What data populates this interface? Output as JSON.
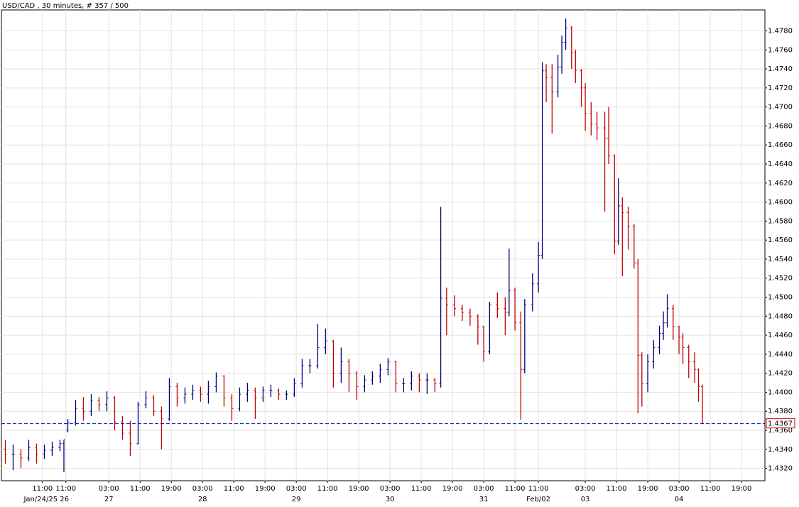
{
  "chart_data": {
    "type": "ohlc",
    "title": "USD/CAD , 30 minutes, # 357 / 500",
    "x": [
      2,
      6,
      10,
      14,
      18,
      22,
      26,
      30,
      32,
      34,
      38,
      42,
      46,
      50,
      54,
      58,
      62,
      66,
      70,
      74,
      78,
      82,
      86,
      90,
      94,
      98,
      102,
      106,
      110,
      114,
      118,
      122,
      126,
      130,
      134,
      138,
      142,
      146,
      150,
      154,
      158,
      162,
      166,
      170,
      174,
      178,
      182,
      186,
      190,
      194,
      198,
      202,
      206,
      210,
      214,
      218,
      222,
      225,
      228,
      232,
      236,
      240,
      244,
      247,
      250,
      254,
      258,
      260,
      263,
      266,
      268,
      272,
      275,
      277,
      279,
      282,
      285,
      287,
      289,
      292,
      294,
      297,
      299,
      302,
      305,
      309,
      311,
      314,
      316,
      318,
      321,
      324,
      326,
      328,
      331,
      334,
      337,
      339,
      341,
      344,
      347,
      349,
      352,
      355,
      357,
      359
    ],
    "open": [
      1.434,
      1.4335,
      1.4335,
      1.4331,
      1.4342,
      1.4335,
      1.4339,
      1.4342,
      1.4346,
      1.436,
      1.4368,
      1.4383,
      1.438,
      1.4391,
      1.4387,
      1.4394,
      1.4369,
      1.4357,
      1.4346,
      1.4387,
      1.4394,
      1.438,
      1.4372,
      1.4406,
      1.4394,
      1.4398,
      1.4402,
      1.4398,
      1.4406,
      1.4417,
      1.4394,
      1.4383,
      1.4398,
      1.4402,
      1.4394,
      1.4402,
      1.4402,
      1.4398,
      1.4398,
      1.4409,
      1.4428,
      1.4428,
      1.4447,
      1.4454,
      1.442,
      1.4432,
      1.442,
      1.4406,
      1.4413,
      1.4417,
      1.4424,
      1.4432,
      1.4409,
      1.4409,
      1.4417,
      1.4413,
      1.4413,
      1.4409,
      1.4499,
      1.4492,
      1.4488,
      1.4484,
      1.448,
      1.4469,
      1.4443,
      1.4492,
      1.4488,
      1.4484,
      1.4507,
      1.4473,
      1.4424,
      1.4492,
      1.4514,
      1.4544,
      1.4738,
      1.4731,
      1.4716,
      1.4742,
      1.4768,
      1.4783,
      1.4757,
      1.4738,
      1.472,
      1.4693,
      1.4682,
      1.4678,
      1.4667,
      1.4649,
      1.4559,
      1.4596,
      1.4589,
      1.4574,
      1.4536,
      1.4439,
      1.4409,
      1.4432,
      1.4447,
      1.4462,
      1.4473,
      1.4488,
      1.4469,
      1.4458,
      1.4447,
      1.4432,
      1.4424,
      1.4406
    ],
    "high": [
      1.435,
      1.4345,
      1.434,
      1.435,
      1.4346,
      1.4345,
      1.4348,
      1.435,
      1.435,
      1.4372,
      1.4392,
      1.4395,
      1.4398,
      1.4395,
      1.4401,
      1.4396,
      1.4375,
      1.437,
      1.439,
      1.4401,
      1.4397,
      1.4385,
      1.4415,
      1.441,
      1.4405,
      1.4408,
      1.4406,
      1.4412,
      1.4421,
      1.4418,
      1.4398,
      1.4405,
      1.441,
      1.4405,
      1.4406,
      1.4408,
      1.4404,
      1.4402,
      1.4415,
      1.4435,
      1.4435,
      1.4472,
      1.4467,
      1.4455,
      1.4447,
      1.4435,
      1.4422,
      1.4418,
      1.4422,
      1.443,
      1.4436,
      1.4433,
      1.4415,
      1.4422,
      1.442,
      1.442,
      1.4415,
      1.4595,
      1.451,
      1.4502,
      1.4492,
      1.4488,
      1.4482,
      1.447,
      1.4495,
      1.4505,
      1.45,
      1.4551,
      1.451,
      1.4485,
      1.4498,
      1.4525,
      1.4558,
      1.4747,
      1.4745,
      1.4745,
      1.4755,
      1.4775,
      1.4793,
      1.4785,
      1.476,
      1.474,
      1.4725,
      1.4705,
      1.4695,
      1.4695,
      1.47,
      1.465,
      1.4625,
      1.4605,
      1.4595,
      1.4577,
      1.454,
      1.4442,
      1.444,
      1.4455,
      1.447,
      1.4485,
      1.4503,
      1.4492,
      1.447,
      1.4462,
      1.445,
      1.4442,
      1.4425,
      1.4408
    ],
    "low": [
      1.4325,
      1.4318,
      1.432,
      1.4328,
      1.4325,
      1.433,
      1.4333,
      1.4338,
      1.4316,
      1.4358,
      1.4365,
      1.437,
      1.4375,
      1.438,
      1.438,
      1.436,
      1.435,
      1.4333,
      1.4345,
      1.4383,
      1.4375,
      1.434,
      1.437,
      1.4385,
      1.4388,
      1.4392,
      1.439,
      1.4388,
      1.44,
      1.4385,
      1.437,
      1.438,
      1.439,
      1.4372,
      1.439,
      1.4395,
      1.4392,
      1.4392,
      1.4395,
      1.4405,
      1.442,
      1.4425,
      1.444,
      1.4405,
      1.441,
      1.44,
      1.4392,
      1.44,
      1.4408,
      1.441,
      1.4418,
      1.44,
      1.44,
      1.4402,
      1.44,
      1.4398,
      1.44,
      1.4405,
      1.446,
      1.448,
      1.4475,
      1.447,
      1.445,
      1.4432,
      1.444,
      1.4478,
      1.446,
      1.448,
      1.4465,
      1.4371,
      1.442,
      1.4485,
      1.4505,
      1.454,
      1.4705,
      1.4672,
      1.471,
      1.4735,
      1.476,
      1.474,
      1.4725,
      1.47,
      1.4675,
      1.467,
      1.4665,
      1.459,
      1.464,
      1.4545,
      1.4555,
      1.4522,
      1.455,
      1.453,
      1.4378,
      1.4385,
      1.44,
      1.4425,
      1.444,
      1.4455,
      1.4468,
      1.4455,
      1.444,
      1.443,
      1.4415,
      1.441,
      1.439,
      1.4367
    ],
    "close": [
      1.4335,
      1.4335,
      1.4331,
      1.4342,
      1.4335,
      1.4339,
      1.4342,
      1.4346,
      1.435,
      1.4368,
      1.4383,
      1.438,
      1.4391,
      1.4387,
      1.4394,
      1.4369,
      1.4357,
      1.4346,
      1.4387,
      1.4394,
      1.438,
      1.4372,
      1.4406,
      1.4394,
      1.4398,
      1.4402,
      1.4398,
      1.4406,
      1.4417,
      1.4394,
      1.4383,
      1.4398,
      1.4402,
      1.4394,
      1.4402,
      1.4402,
      1.4398,
      1.4398,
      1.4409,
      1.4428,
      1.4428,
      1.4447,
      1.4454,
      1.442,
      1.4432,
      1.442,
      1.4406,
      1.4413,
      1.4417,
      1.4424,
      1.4432,
      1.4409,
      1.4409,
      1.4417,
      1.4413,
      1.4413,
      1.4409,
      1.4499,
      1.4492,
      1.4488,
      1.4484,
      1.448,
      1.4469,
      1.4443,
      1.4492,
      1.4488,
      1.4484,
      1.4507,
      1.4473,
      1.4424,
      1.4492,
      1.4514,
      1.4544,
      1.4738,
      1.4731,
      1.4716,
      1.4742,
      1.4768,
      1.4783,
      1.4757,
      1.4738,
      1.472,
      1.4693,
      1.4682,
      1.4678,
      1.4667,
      1.4649,
      1.4559,
      1.4596,
      1.4589,
      1.4574,
      1.4536,
      1.4439,
      1.4409,
      1.4432,
      1.4447,
      1.4462,
      1.4473,
      1.4488,
      1.4469,
      1.4458,
      1.4447,
      1.4432,
      1.4424,
      1.4406,
      1.4367
    ],
    "up_color": "#00007a",
    "down_color": "#c00000",
    "xlim": [
      0,
      391
    ],
    "ylim": [
      1.4307,
      1.4802
    ],
    "yticks": [
      {
        "value": 1.432,
        "label": "1.4320"
      },
      {
        "value": 1.434,
        "label": "1.4340"
      },
      {
        "value": 1.436,
        "label": "1.4360"
      },
      {
        "value": 1.438,
        "label": "1.4380"
      },
      {
        "value": 1.44,
        "label": "1.4400"
      },
      {
        "value": 1.442,
        "label": "1.4420"
      },
      {
        "value": 1.444,
        "label": "1.4440"
      },
      {
        "value": 1.446,
        "label": "1.4460"
      },
      {
        "value": 1.448,
        "label": "1.4480"
      },
      {
        "value": 1.45,
        "label": "1.4500"
      },
      {
        "value": 1.452,
        "label": "1.4520"
      },
      {
        "value": 1.454,
        "label": "1.4540"
      },
      {
        "value": 1.456,
        "label": "1.4560"
      },
      {
        "value": 1.458,
        "label": "1.4580"
      },
      {
        "value": 1.46,
        "label": "1.4600"
      },
      {
        "value": 1.462,
        "label": "1.4620"
      },
      {
        "value": 1.464,
        "label": "1.4640"
      },
      {
        "value": 1.466,
        "label": "1.4660"
      },
      {
        "value": 1.468,
        "label": "1.4680"
      },
      {
        "value": 1.47,
        "label": "1.4700"
      },
      {
        "value": 1.472,
        "label": "1.4720"
      },
      {
        "value": 1.474,
        "label": "1.4740"
      },
      {
        "value": 1.476,
        "label": "1.4760"
      },
      {
        "value": 1.478,
        "label": "1.4780"
      }
    ],
    "xticks": [
      {
        "value": 21,
        "label": "11:00"
      },
      {
        "value": 33,
        "label": "11:00"
      },
      {
        "value": 55,
        "label": "03:00"
      },
      {
        "value": 71,
        "label": "11:00"
      },
      {
        "value": 87,
        "label": "19:00"
      },
      {
        "value": 103,
        "label": "03:00"
      },
      {
        "value": 119,
        "label": "11:00"
      },
      {
        "value": 135,
        "label": "19:00"
      },
      {
        "value": 151,
        "label": "03:00"
      },
      {
        "value": 167,
        "label": "11:00"
      },
      {
        "value": 183,
        "label": "19:00"
      },
      {
        "value": 199,
        "label": "03:00"
      },
      {
        "value": 215,
        "label": "11:00"
      },
      {
        "value": 231,
        "label": "19:00"
      },
      {
        "value": 247,
        "label": "03:00"
      },
      {
        "value": 263,
        "label": "11:00"
      },
      {
        "value": 275,
        "label": "11:00"
      },
      {
        "value": 299,
        "label": "03:00"
      },
      {
        "value": 315,
        "label": "11:00"
      },
      {
        "value": 331,
        "label": "19:00"
      },
      {
        "value": 347,
        "label": "03:00"
      },
      {
        "value": 363,
        "label": "11:00"
      },
      {
        "value": 379,
        "label": "19:00"
      }
    ],
    "date_labels": [
      {
        "value": 23,
        "label": "Jan/24/25 26"
      },
      {
        "value": 55,
        "label": "27"
      },
      {
        "value": 103,
        "label": "28"
      },
      {
        "value": 151,
        "label": "29"
      },
      {
        "value": 199,
        "label": "30"
      },
      {
        "value": 247,
        "label": "31"
      },
      {
        "value": 275,
        "label": "Feb/02"
      },
      {
        "value": 299,
        "label": "03"
      },
      {
        "value": 347,
        "label": "04"
      }
    ],
    "current_price": {
      "value": 1.4367,
      "label": "1.4367",
      "color": "#0000cc"
    },
    "grid": true
  }
}
